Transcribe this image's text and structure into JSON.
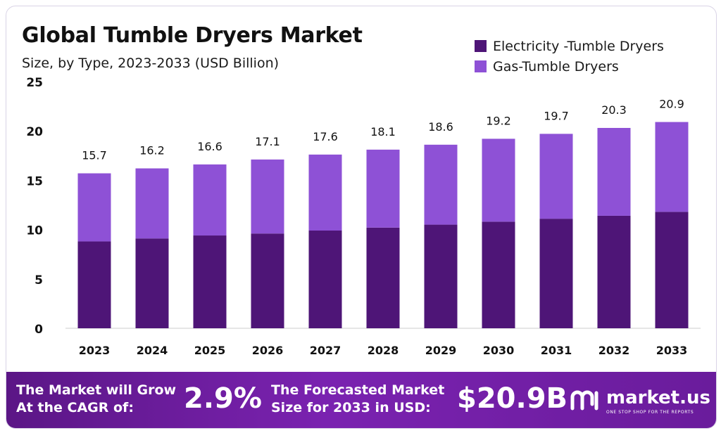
{
  "title": "Global Tumble Dryers Market",
  "subtitle": "Size, by Type, 2023-2033 (USD Billion)",
  "colors": {
    "electricity": "#4e1577",
    "gas": "#8e51d6",
    "footer": "#6a1c9c"
  },
  "chart_data": {
    "type": "bar",
    "stacked": true,
    "categories": [
      "2023",
      "2024",
      "2025",
      "2026",
      "2027",
      "2028",
      "2029",
      "2030",
      "2031",
      "2032",
      "2033"
    ],
    "series": [
      {
        "name": "Electricity -Tumble Dryers",
        "values": [
          8.8,
          9.1,
          9.4,
          9.6,
          9.9,
          10.2,
          10.5,
          10.8,
          11.1,
          11.4,
          11.8
        ]
      },
      {
        "name": "Gas-Tumble Dryers",
        "values": [
          6.9,
          7.1,
          7.2,
          7.5,
          7.7,
          7.9,
          8.1,
          8.4,
          8.6,
          8.9,
          9.1
        ]
      }
    ],
    "totals": [
      "15.7",
      "16.2",
      "16.6",
      "17.1",
      "17.6",
      "18.1",
      "18.6",
      "19.2",
      "19.7",
      "20.3",
      "20.9"
    ],
    "ylim": [
      0,
      25
    ],
    "yticks": [
      "0",
      "5",
      "10",
      "15",
      "20",
      "25"
    ],
    "grid": false,
    "legend": "top-right"
  },
  "footer": {
    "cagr_line1": "The Market will Grow",
    "cagr_line2": "At the CAGR of:",
    "cagr_value": "2.9%",
    "forecast_line1": "The Forecasted Market",
    "forecast_line2": "Size for 2033 in USD:",
    "forecast_value": "$20.9B",
    "brand": "market.us",
    "tagline": "ONE STOP SHOP FOR THE REPORTS"
  }
}
